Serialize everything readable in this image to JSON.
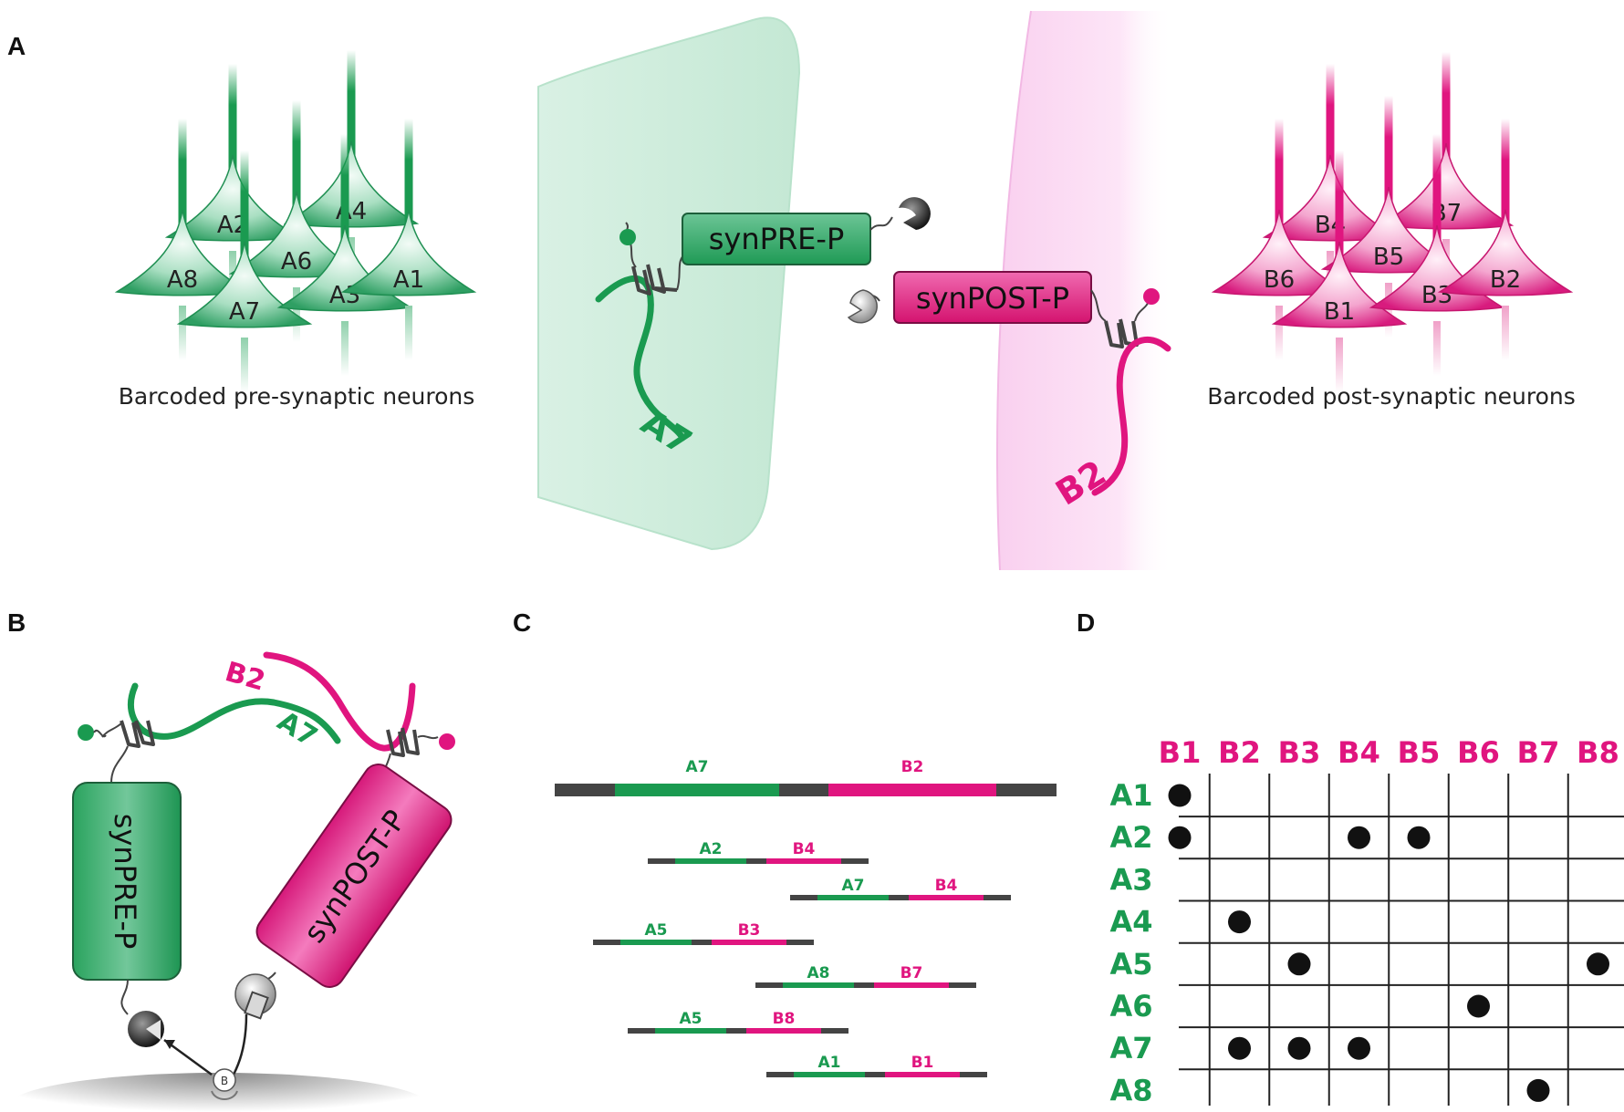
{
  "panels": {
    "a": {
      "letter": "A",
      "pre_caption": "Barcoded pre-synaptic neurons",
      "post_caption": "Barcoded post-synaptic neurons",
      "pre_neurons": [
        "A2",
        "A4",
        "A6",
        "A8",
        "A7",
        "A3",
        "A1"
      ],
      "post_neurons": [
        "B4",
        "B7",
        "B5",
        "B6",
        "B1",
        "B3",
        "B2"
      ],
      "pre_protein": "synPRE-P",
      "post_protein": "synPOST-P",
      "pre_barcode": "A7",
      "post_barcode": "B2"
    },
    "b": {
      "letter": "B",
      "pre_protein": "synPRE-P",
      "post_protein": "synPOST-P",
      "pre_barcode": "A7",
      "post_barcode": "B2",
      "bridge_label": "B"
    },
    "c": {
      "letter": "C",
      "main_read": {
        "pre": "A7",
        "post": "B2"
      },
      "reads": [
        {
          "pre": "A2",
          "post": "B4"
        },
        {
          "pre": "A7",
          "post": "B4"
        },
        {
          "pre": "A5",
          "post": "B3"
        },
        {
          "pre": "A8",
          "post": "B7"
        },
        {
          "pre": "A5",
          "post": "B8"
        },
        {
          "pre": "A1",
          "post": "B1"
        }
      ]
    },
    "d": {
      "letter": "D",
      "columns": [
        "B1",
        "B2",
        "B3",
        "B4",
        "B5",
        "B6",
        "B7",
        "B8"
      ],
      "rows": [
        "A1",
        "A2",
        "A3",
        "A4",
        "A5",
        "A6",
        "A7",
        "A8"
      ],
      "connections": [
        [
          "A1",
          "B1"
        ],
        [
          "A2",
          "B1"
        ],
        [
          "A2",
          "B4"
        ],
        [
          "A2",
          "B5"
        ],
        [
          "A4",
          "B2"
        ],
        [
          "A5",
          "B3"
        ],
        [
          "A5",
          "B8"
        ],
        [
          "A6",
          "B6"
        ],
        [
          "A7",
          "B2"
        ],
        [
          "A7",
          "B3"
        ],
        [
          "A7",
          "B4"
        ],
        [
          "A8",
          "B7"
        ]
      ]
    }
  },
  "colors": {
    "pre": "#1a9a50",
    "post": "#e0157f",
    "adapter": "#444444"
  }
}
